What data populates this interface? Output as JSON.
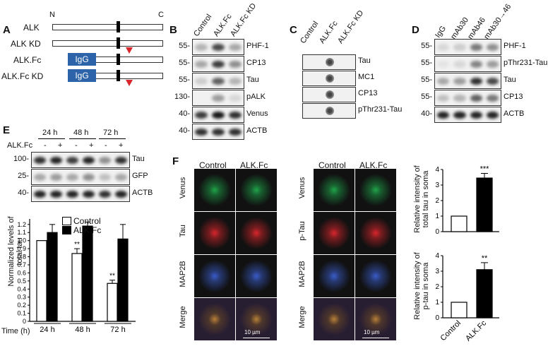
{
  "panelA": {
    "label": "A",
    "n": "N",
    "c": "C",
    "constructs": [
      "ALK",
      "ALK KD",
      "ALK.Fc",
      "ALK.Fc KD"
    ],
    "igg": "IgG"
  },
  "panelB": {
    "label": "B",
    "lanes": [
      "Control",
      "ALK.Fc",
      "ALK.Fc KD"
    ],
    "rows": [
      {
        "name": "PHF-1",
        "mw": "55-"
      },
      {
        "name": "CP13",
        "mw": "55-"
      },
      {
        "name": "Tau",
        "mw": "55-"
      },
      {
        "name": "pALK",
        "mw": "130-"
      },
      {
        "name": "Venus",
        "mw": "40-"
      },
      {
        "name": "ACTB",
        "mw": "40-"
      }
    ]
  },
  "panelC": {
    "label": "C",
    "lanes": [
      "Control",
      "ALK.Fc",
      "ALK.Fc KD"
    ],
    "rows": [
      "Tau",
      "MC1",
      "CP13",
      "pThr231-Tau"
    ]
  },
  "panelD": {
    "label": "D",
    "lanes": [
      "IgG",
      "mAb30",
      "mAb46",
      "mAb30→46"
    ],
    "rows": [
      {
        "name": "PHF-1",
        "mw": "55-"
      },
      {
        "name": "pThr231-Tau",
        "mw": "55-"
      },
      {
        "name": "Tau",
        "mw": "55-"
      },
      {
        "name": "CP13",
        "mw": "55-"
      },
      {
        "name": "ACTB",
        "mw": "40-"
      }
    ]
  },
  "panelE": {
    "label": "E",
    "times": [
      "24 h",
      "48 h",
      "72 h"
    ],
    "treat_label": "ALK.Fc",
    "signs": [
      "-",
      "+",
      "-",
      "+",
      "-",
      "+"
    ],
    "rows": [
      {
        "name": "Tau",
        "mw": "100-"
      },
      {
        "name": "GFP",
        "mw": "25-"
      },
      {
        "name": "ACTB",
        "mw": "40-"
      }
    ],
    "chart": {
      "ylabel": "Normalized levels of total tau",
      "xlabel": "Time (h)",
      "legend": [
        "Control",
        "ALK.Fc"
      ],
      "yticks": [
        "0",
        "0.1",
        "0.2",
        "0.3",
        "0.4",
        "0.5",
        "0.6",
        "0.7",
        "0.8",
        "0.9",
        "1.0",
        "1.1",
        "1.2"
      ],
      "categories": [
        "24 h",
        "48 h",
        "72 h"
      ],
      "sig": [
        "",
        "**",
        "**"
      ]
    }
  },
  "panelF": {
    "label": "F",
    "cols": [
      "Control",
      "ALK.Fc"
    ],
    "rowsL": [
      "Venus",
      "Tau",
      "MAP2B",
      "Merge"
    ],
    "rowsR": [
      "Venus",
      "p-Tau",
      "MAP2B",
      "Merge"
    ],
    "scale": "10 µm",
    "chart1": {
      "ylabel": "Relative intensity of total tau in soma",
      "yticks": [
        "0",
        "1",
        "2",
        "3",
        "4"
      ],
      "sig": "***"
    },
    "chart2": {
      "ylabel": "Relative intensity of p-tau in soma",
      "yticks": [
        "0",
        "1",
        "2",
        "3",
        "4"
      ],
      "sig": "**"
    },
    "xcats": [
      "Control",
      "ALK.Fc"
    ]
  },
  "chart_data": [
    {
      "type": "bar",
      "title": "",
      "xlabel": "Time (h)",
      "ylabel": "Normalized levels of total tau",
      "categories": [
        "24 h",
        "48 h",
        "72 h"
      ],
      "series": [
        {
          "name": "Control",
          "values": [
            1.0,
            0.84,
            0.47
          ],
          "errors": [
            0,
            0.06,
            0.04
          ]
        },
        {
          "name": "ALK.Fc",
          "values": [
            1.1,
            1.18,
            1.02
          ],
          "errors": [
            0.1,
            0.05,
            0.18
          ]
        }
      ],
      "ylim": [
        0,
        1.2
      ]
    },
    {
      "type": "bar",
      "ylabel": "Relative intensity of total tau in soma",
      "categories": [
        "Control",
        "ALK.Fc"
      ],
      "values": [
        1.0,
        3.45
      ],
      "errors": [
        0,
        0.3
      ],
      "ylim": [
        0,
        4
      ]
    },
    {
      "type": "bar",
      "ylabel": "Relative intensity of p-tau in soma",
      "categories": [
        "Control",
        "ALK.Fc"
      ],
      "values": [
        1.0,
        3.1
      ],
      "errors": [
        0,
        0.45
      ],
      "ylim": [
        0,
        4
      ]
    }
  ]
}
